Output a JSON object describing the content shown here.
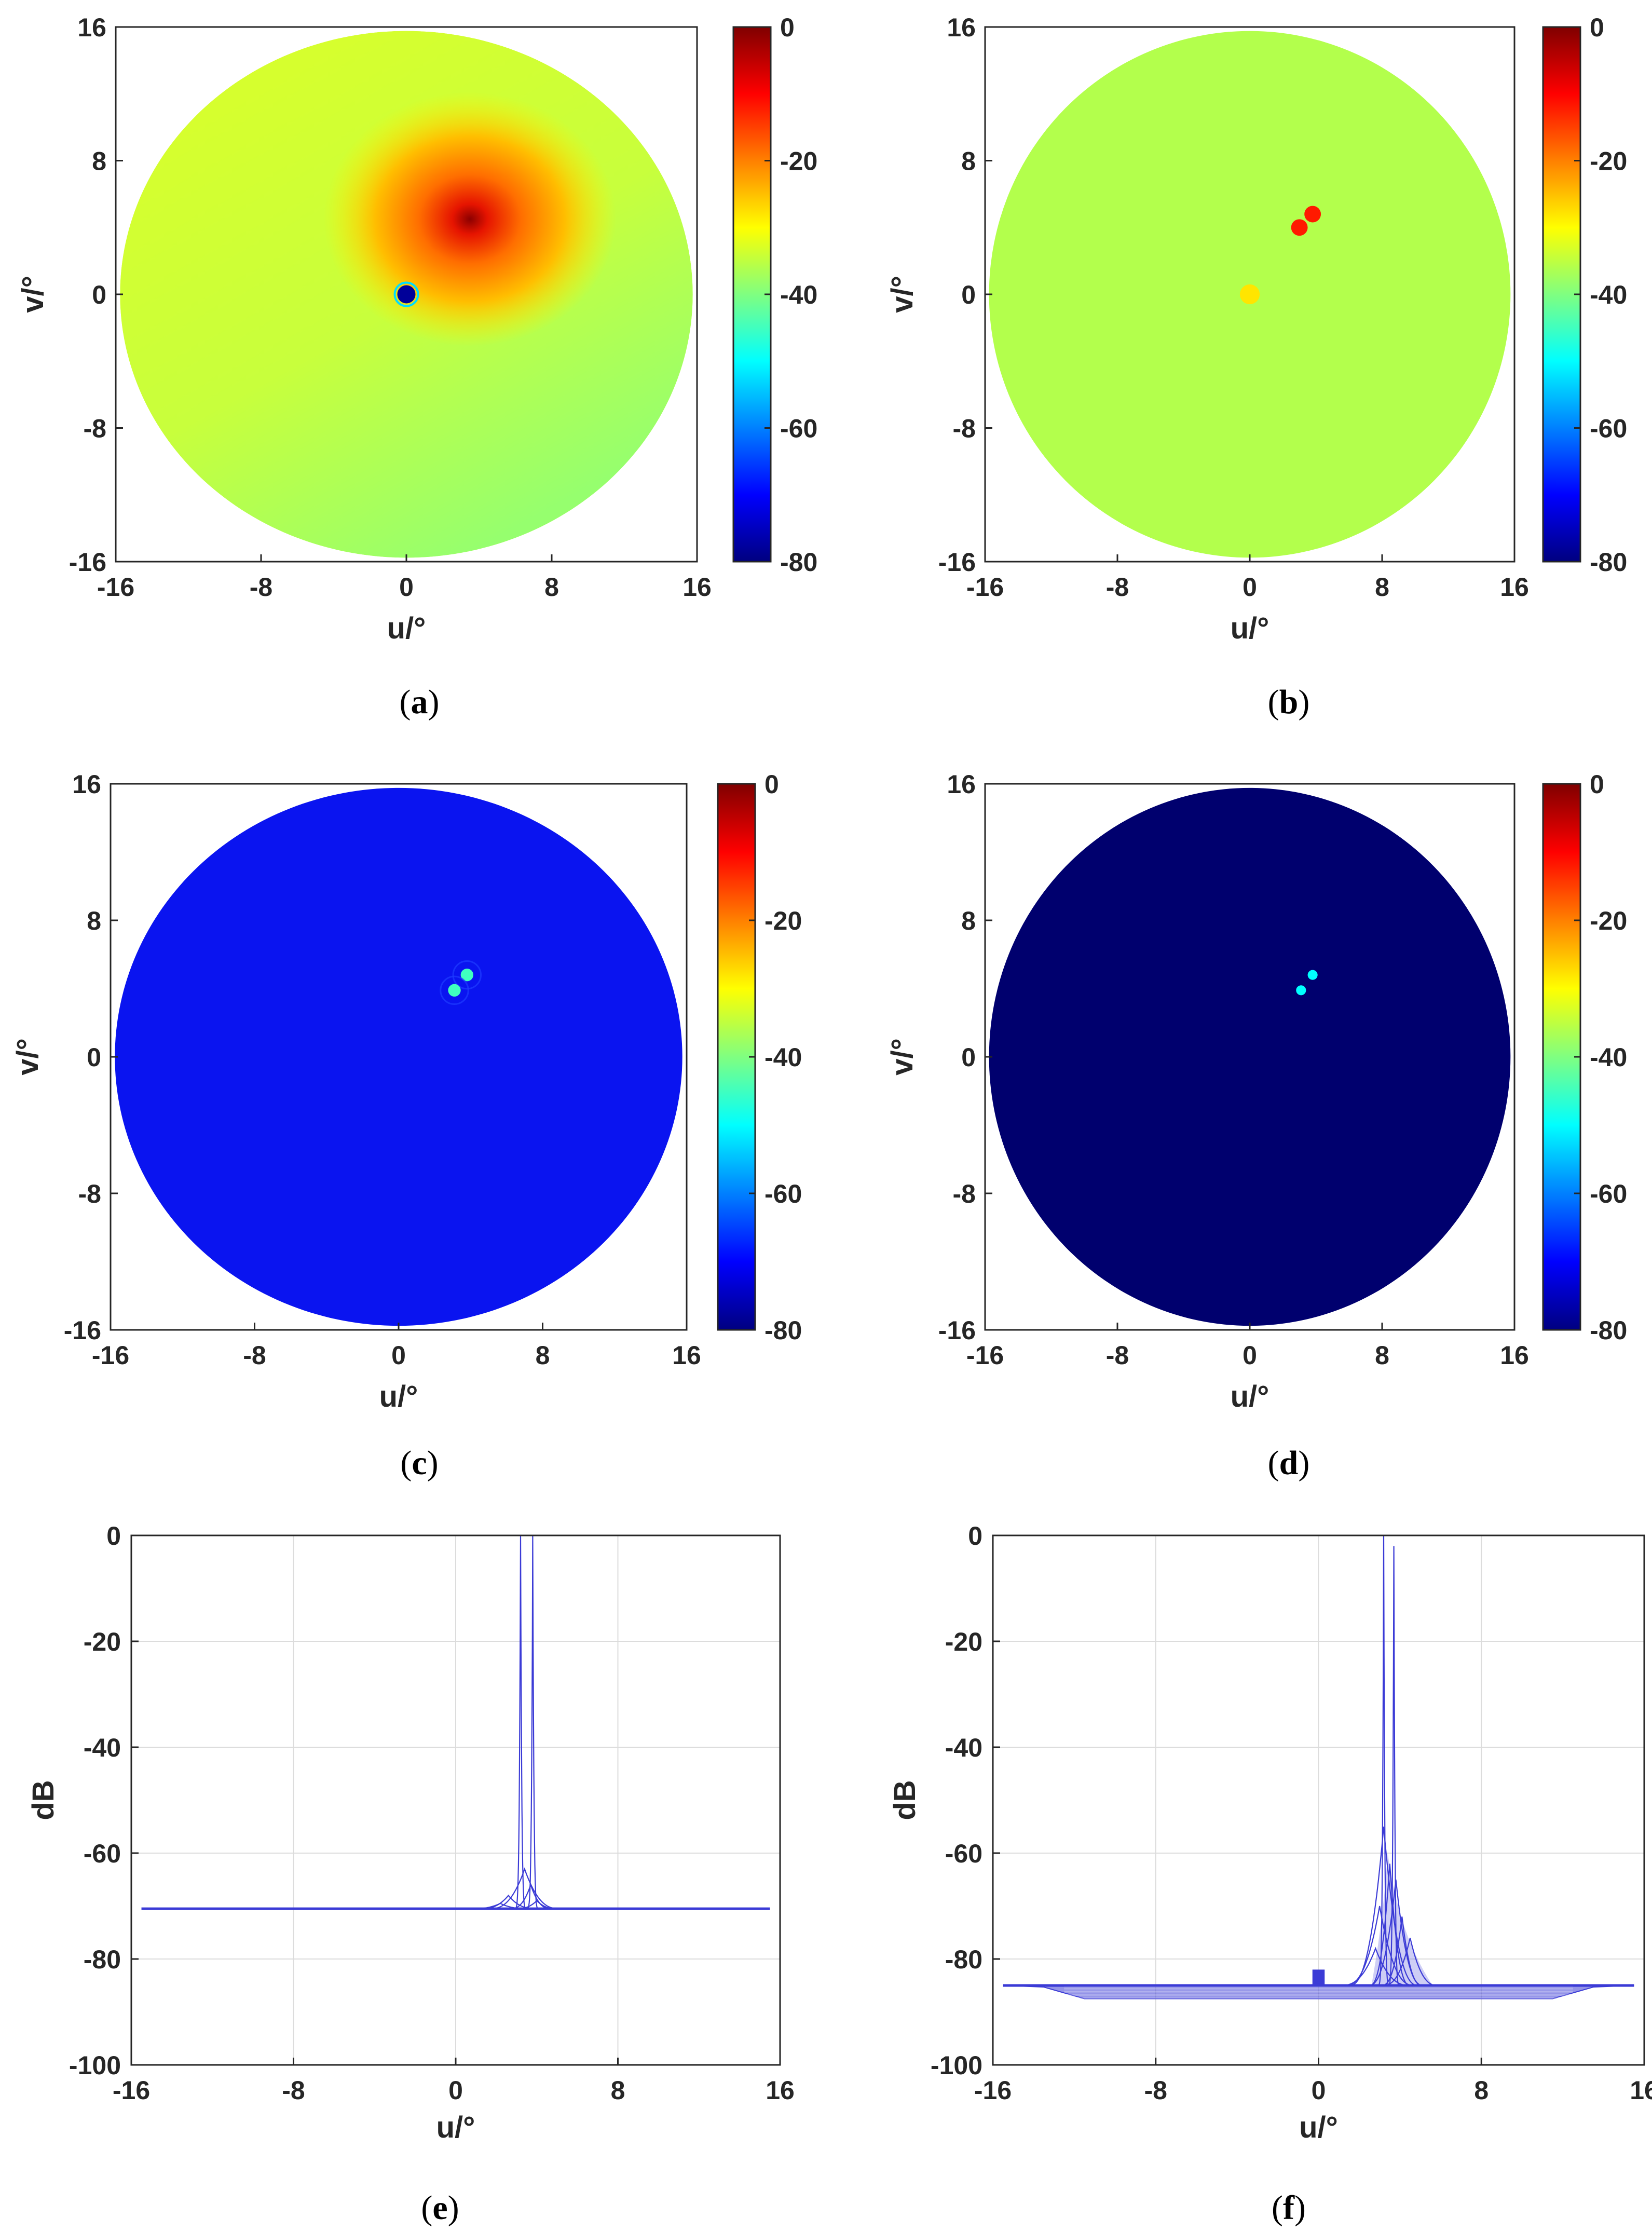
{
  "colors": {
    "line": "#3b3bd6",
    "heatmap_c_fill": "#0a14f0",
    "heatmap_d_fill": "#00006e",
    "colormap": "jet"
  },
  "chart_data": [
    {
      "type": "heatmap",
      "panel_label": "a",
      "xlabel": "u/°",
      "ylabel": "v/°",
      "xlim": [
        -16,
        16
      ],
      "ylim": [
        -16,
        16
      ],
      "xticks": [
        -16,
        -8,
        0,
        8,
        16
      ],
      "yticks": [
        16,
        8,
        0,
        -8,
        -16
      ],
      "colorbar": {
        "clim": [
          -80,
          0
        ],
        "ticks": [
          0,
          -20,
          -40,
          -60,
          -80
        ]
      },
      "region": "circle of radius 16 centred at (0, 0)",
      "background_level_db": -33,
      "features": [
        {
          "u": 3.5,
          "v": 4.5,
          "level_db": -5,
          "extent": 7
        },
        {
          "u": 0,
          "v": 0,
          "level_db": -78,
          "extent": 0.5
        }
      ]
    },
    {
      "type": "heatmap",
      "panel_label": "b",
      "xlabel": "u/°",
      "ylabel": "v/°",
      "xlim": [
        -16,
        16
      ],
      "ylim": [
        -16,
        16
      ],
      "xticks": [
        -16,
        -8,
        0,
        8,
        16
      ],
      "yticks": [
        16,
        8,
        0,
        -8,
        -16
      ],
      "colorbar": {
        "clim": [
          -80,
          0
        ],
        "ticks": [
          0,
          -20,
          -40,
          -60,
          -80
        ]
      },
      "region": "circle of radius 16 centred at (0, 0)",
      "background_level_db": -36,
      "features": [
        {
          "u": 3.8,
          "v": 4.8,
          "level_db": -12,
          "extent": 0.5
        },
        {
          "u": 3.0,
          "v": 4.0,
          "level_db": -12,
          "extent": 0.5
        },
        {
          "u": 0,
          "v": 0,
          "level_db": -28,
          "extent": 0.6
        }
      ]
    },
    {
      "type": "heatmap",
      "panel_label": "c",
      "xlabel": "u/°",
      "ylabel": "v/°",
      "xlim": [
        -16,
        16
      ],
      "ylim": [
        -16,
        16
      ],
      "xticks": [
        -16,
        -8,
        0,
        8,
        16
      ],
      "yticks": [
        16,
        8,
        0,
        -8,
        -16
      ],
      "colorbar": {
        "clim": [
          -80,
          0
        ],
        "ticks": [
          0,
          -20,
          -40,
          -60,
          -80
        ]
      },
      "region": "circle of radius 16 centred at (0, 0)",
      "background_level_db": -70,
      "features": [
        {
          "u": 3.8,
          "v": 4.8,
          "level_db": -45,
          "extent": 0.35
        },
        {
          "u": 3.1,
          "v": 3.9,
          "level_db": -45,
          "extent": 0.35
        }
      ]
    },
    {
      "type": "heatmap",
      "panel_label": "d",
      "xlabel": "u/°",
      "ylabel": "v/°",
      "xlim": [
        -16,
        16
      ],
      "ylim": [
        -16,
        16
      ],
      "xticks": [
        -16,
        -8,
        0,
        8,
        16
      ],
      "yticks": [
        16,
        8,
        0,
        -8,
        -16
      ],
      "colorbar": {
        "clim": [
          -80,
          0
        ],
        "ticks": [
          0,
          -20,
          -40,
          -60,
          -80
        ]
      },
      "region": "circle of radius 16 centred at (0, 0)",
      "background_level_db": -80,
      "features": [
        {
          "u": 3.8,
          "v": 4.8,
          "level_db": -50,
          "extent": 0.3
        },
        {
          "u": 3.1,
          "v": 3.9,
          "level_db": -50,
          "extent": 0.3
        }
      ]
    },
    {
      "type": "line",
      "panel_label": "e",
      "xlabel": "u/°",
      "ylabel": "dB",
      "xlim": [
        -16,
        16
      ],
      "ylim": [
        -100,
        0
      ],
      "xticks": [
        -16,
        -8,
        0,
        8,
        16
      ],
      "yticks": [
        0,
        -20,
        -40,
        -60,
        -80,
        -100
      ],
      "grid": true,
      "baseline_db": -70.5,
      "baseline_range": [
        -15.5,
        15.5
      ],
      "peaks": [
        {
          "u": 3.2,
          "db": 0
        },
        {
          "u": 3.8,
          "db": 0
        },
        {
          "u": 3.4,
          "db": -63
        },
        {
          "u": 3.7,
          "db": -66
        },
        {
          "u": 2.6,
          "db": -68
        },
        {
          "u": 4.4,
          "db": -68
        },
        {
          "u": 4.0,
          "db": -69
        },
        {
          "u": 2.2,
          "db": -69.5
        }
      ]
    },
    {
      "type": "line",
      "panel_label": "f",
      "xlabel": "u/°",
      "ylabel": "dB",
      "xlim": [
        -16,
        16
      ],
      "ylim": [
        -100,
        0
      ],
      "xticks": [
        -16,
        -8,
        0,
        8,
        16
      ],
      "yticks": [
        0,
        -20,
        -40,
        -60,
        -80,
        -100
      ],
      "grid": true,
      "baseline_db": -85,
      "baseline_range": [
        -15.5,
        15.5
      ],
      "floor_band_db": [
        -87.5,
        -85
      ],
      "step": {
        "u_range": [
          -0.3,
          0.3
        ],
        "db": -82
      },
      "peaks": [
        {
          "u": 3.2,
          "db": 0
        },
        {
          "u": 3.7,
          "db": -2
        },
        {
          "u": 3.2,
          "db": -55
        },
        {
          "u": 3.5,
          "db": -62
        },
        {
          "u": 3.8,
          "db": -65
        },
        {
          "u": 3.0,
          "db": -70
        },
        {
          "u": 4.1,
          "db": -72
        },
        {
          "u": 4.5,
          "db": -76
        },
        {
          "u": 2.8,
          "db": -78
        }
      ]
    }
  ]
}
